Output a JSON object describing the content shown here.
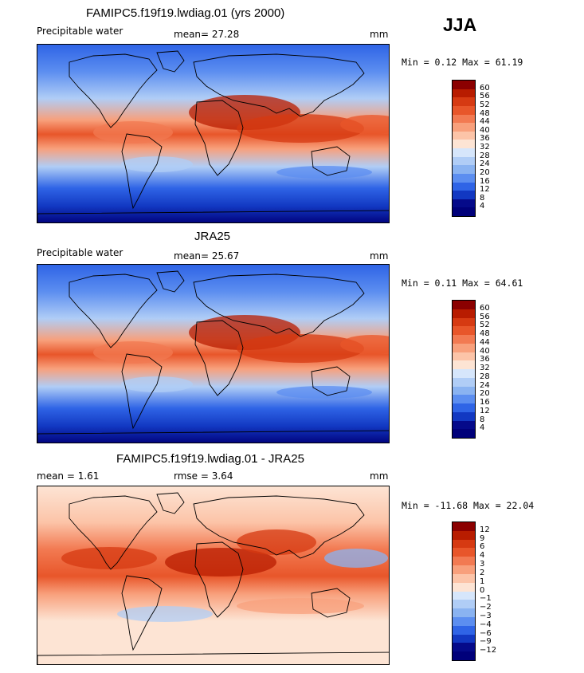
{
  "season": "JJA",
  "panels": [
    {
      "title": "FAMIPC5.f19f19.lwdiag.01 (yrs 2000)",
      "left_label": "Precipitable water",
      "mid_label": "mean=  27.28",
      "units": "mm",
      "minmax": "Min =   0.12 Max =  61.19",
      "levels": [
        "60",
        "56",
        "52",
        "48",
        "44",
        "40",
        "36",
        "32",
        "28",
        "24",
        "20",
        "16",
        "12",
        "8",
        "4"
      ],
      "palette": "pw"
    },
    {
      "title": "JRA25",
      "left_label": "Precipitable water",
      "mid_label": "mean=  25.67",
      "units": "mm",
      "minmax": "Min =   0.11 Max =  64.61",
      "levels": [
        "60",
        "56",
        "52",
        "48",
        "44",
        "40",
        "36",
        "32",
        "28",
        "24",
        "20",
        "16",
        "12",
        "8",
        "4"
      ],
      "palette": "pw"
    },
    {
      "title": "FAMIPC5.f19f19.lwdiag.01 - JRA25",
      "left_label": "mean =   1.61",
      "mid_label": "rmse =   3.64",
      "units": "mm",
      "minmax": "Min = -11.68 Max =  22.04",
      "levels": [
        "12",
        "9",
        "6",
        "4",
        "3",
        "2",
        "1",
        "0",
        "−1",
        "−2",
        "−3",
        "−4",
        "−6",
        "−9",
        "−12"
      ],
      "palette": "diff"
    }
  ],
  "colors": {
    "pw": [
      "#8b0000",
      "#b81c00",
      "#d63a12",
      "#e8562a",
      "#f27a52",
      "#f8a07c",
      "#fcc4a8",
      "#fde4d4",
      "#d6e6fb",
      "#b0cdf6",
      "#8ab3f1",
      "#5c8ef0",
      "#2f64e6",
      "#1238c2",
      "#050a8a",
      "#00007a"
    ],
    "diff": [
      "#8b0000",
      "#b81c00",
      "#d63a12",
      "#e8562a",
      "#f27a52",
      "#f8a07c",
      "#fcc4a8",
      "#fde4d4",
      "#d6e6fb",
      "#b0cdf6",
      "#8ab3f1",
      "#5c8ef0",
      "#2f64e6",
      "#1238c2",
      "#050a8a",
      "#00007a"
    ]
  }
}
